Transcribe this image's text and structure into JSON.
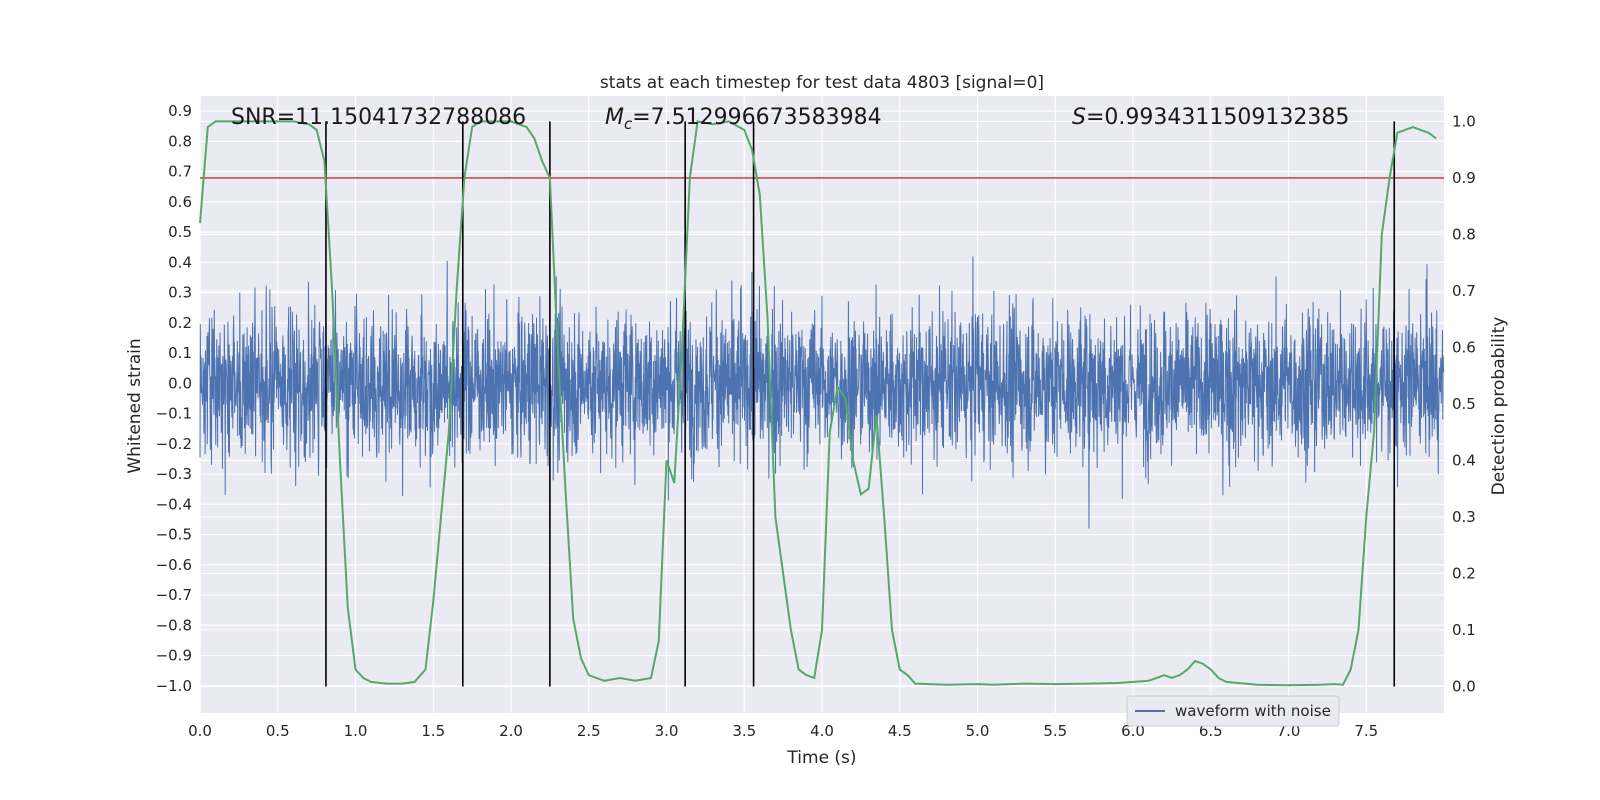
{
  "chart_data": {
    "type": "line",
    "title": "stats at each timestep for test data 4803 [signal=0]",
    "xlabel": "Time (s)",
    "ylabel_left": "Whitened strain",
    "ylabel_right": "Detection probability",
    "xlim": [
      0.0,
      8.0
    ],
    "ylim_left": [
      -1.09,
      0.95
    ],
    "ylim_right": [
      -0.047,
      1.045
    ],
    "x_ticks": [
      0.0,
      0.5,
      1.0,
      1.5,
      2.0,
      2.5,
      3.0,
      3.5,
      4.0,
      4.5,
      5.0,
      5.5,
      6.0,
      6.5,
      7.0,
      7.5
    ],
    "x_tick_labels": [
      "0.0",
      "0.5",
      "1.0",
      "1.5",
      "2.0",
      "2.5",
      "3.0",
      "3.5",
      "4.0",
      "4.5",
      "5.0",
      "5.5",
      "6.0",
      "6.5",
      "7.0",
      "7.5"
    ],
    "y_left_ticks": [
      0.9,
      0.8,
      0.7,
      0.6,
      0.5,
      0.4,
      0.3,
      0.2,
      0.1,
      0.0,
      -0.1,
      -0.2,
      -0.3,
      -0.4,
      -0.5,
      -0.6,
      -0.7,
      -0.8,
      -0.9,
      -1.0
    ],
    "y_left_tick_labels": [
      "0.9",
      "0.8",
      "0.7",
      "0.6",
      "0.5",
      "0.4",
      "0.3",
      "0.2",
      "0.1",
      "0.0",
      "−0.1",
      "−0.2",
      "−0.3",
      "−0.4",
      "−0.5",
      "−0.6",
      "−0.7",
      "−0.8",
      "−0.9",
      "−1.0"
    ],
    "y_right_ticks": [
      1.0,
      0.9,
      0.8,
      0.7,
      0.6,
      0.5,
      0.4,
      0.3,
      0.2,
      0.1,
      0.0
    ],
    "y_right_tick_labels": [
      "1.0",
      "0.9",
      "0.8",
      "0.7",
      "0.6",
      "0.5",
      "0.4",
      "0.3",
      "0.2",
      "0.1",
      "0.0"
    ],
    "grid": true,
    "legend_position": "lower-right",
    "annotations": {
      "snr": "SNR=11.15041732788086",
      "mc_symbol": "M",
      "mc_sub": "c",
      "mc_value": "=7.512996673583984",
      "s_symbol": "S",
      "s_value": "=0.9934311509132385"
    },
    "threshold": {
      "value": 0.9,
      "axis": "right",
      "color": "#c44e52"
    },
    "vertical_markers": [
      0.81,
      1.69,
      2.25,
      3.12,
      3.56,
      7.68
    ],
    "series": [
      {
        "name": "waveform with noise",
        "kind": "noise",
        "color": "#4c72b0",
        "axis": "left",
        "x_range": [
          0.0,
          8.0
        ],
        "sample_rate": 512,
        "envelope_typical": 0.45,
        "extreme_max": 0.85,
        "extreme_min": -1.0
      },
      {
        "name": "",
        "kind": "probability",
        "color": "#55a868",
        "axis": "right",
        "x": [
          0.0,
          0.05,
          0.1,
          0.2,
          0.3,
          0.4,
          0.5,
          0.6,
          0.7,
          0.75,
          0.8,
          0.85,
          0.9,
          0.95,
          1.0,
          1.05,
          1.1,
          1.2,
          1.3,
          1.38,
          1.45,
          1.5,
          1.55,
          1.6,
          1.65,
          1.7,
          1.75,
          1.8,
          1.9,
          2.0,
          2.1,
          2.15,
          2.2,
          2.25,
          2.3,
          2.35,
          2.4,
          2.45,
          2.5,
          2.6,
          2.7,
          2.8,
          2.9,
          2.95,
          3.0,
          3.05,
          3.1,
          3.15,
          3.2,
          3.3,
          3.4,
          3.5,
          3.55,
          3.6,
          3.65,
          3.7,
          3.75,
          3.8,
          3.85,
          3.9,
          3.95,
          4.0,
          4.05,
          4.1,
          4.15,
          4.2,
          4.25,
          4.3,
          4.35,
          4.4,
          4.45,
          4.5,
          4.55,
          4.6,
          4.8,
          5.0,
          5.1,
          5.3,
          5.5,
          5.7,
          5.9,
          6.1,
          6.2,
          6.25,
          6.3,
          6.35,
          6.4,
          6.45,
          6.5,
          6.55,
          6.6,
          6.8,
          7.0,
          7.2,
          7.3,
          7.35,
          7.4,
          7.45,
          7.5,
          7.55,
          7.6,
          7.65,
          7.7,
          7.75,
          7.8,
          7.85,
          7.9,
          7.95
        ],
        "y": [
          0.82,
          0.99,
          1.0,
          1.0,
          1.0,
          1.0,
          1.0,
          1.0,
          0.995,
          0.985,
          0.93,
          0.7,
          0.4,
          0.14,
          0.03,
          0.015,
          0.008,
          0.005,
          0.005,
          0.008,
          0.03,
          0.15,
          0.3,
          0.45,
          0.7,
          0.9,
          0.99,
          1.0,
          1.0,
          1.0,
          0.99,
          0.97,
          0.93,
          0.9,
          0.6,
          0.35,
          0.12,
          0.05,
          0.02,
          0.01,
          0.015,
          0.01,
          0.015,
          0.08,
          0.4,
          0.36,
          0.6,
          0.9,
          1.0,
          0.995,
          1.0,
          0.985,
          0.95,
          0.87,
          0.65,
          0.3,
          0.2,
          0.1,
          0.03,
          0.02,
          0.015,
          0.1,
          0.45,
          0.53,
          0.51,
          0.4,
          0.34,
          0.35,
          0.48,
          0.3,
          0.1,
          0.03,
          0.02,
          0.005,
          0.003,
          0.004,
          0.003,
          0.005,
          0.004,
          0.005,
          0.006,
          0.01,
          0.02,
          0.015,
          0.02,
          0.03,
          0.045,
          0.04,
          0.03,
          0.015,
          0.008,
          0.003,
          0.002,
          0.003,
          0.004,
          0.003,
          0.03,
          0.1,
          0.3,
          0.45,
          0.8,
          0.9,
          0.98,
          0.985,
          0.99,
          0.985,
          0.98,
          0.97
        ]
      }
    ]
  }
}
